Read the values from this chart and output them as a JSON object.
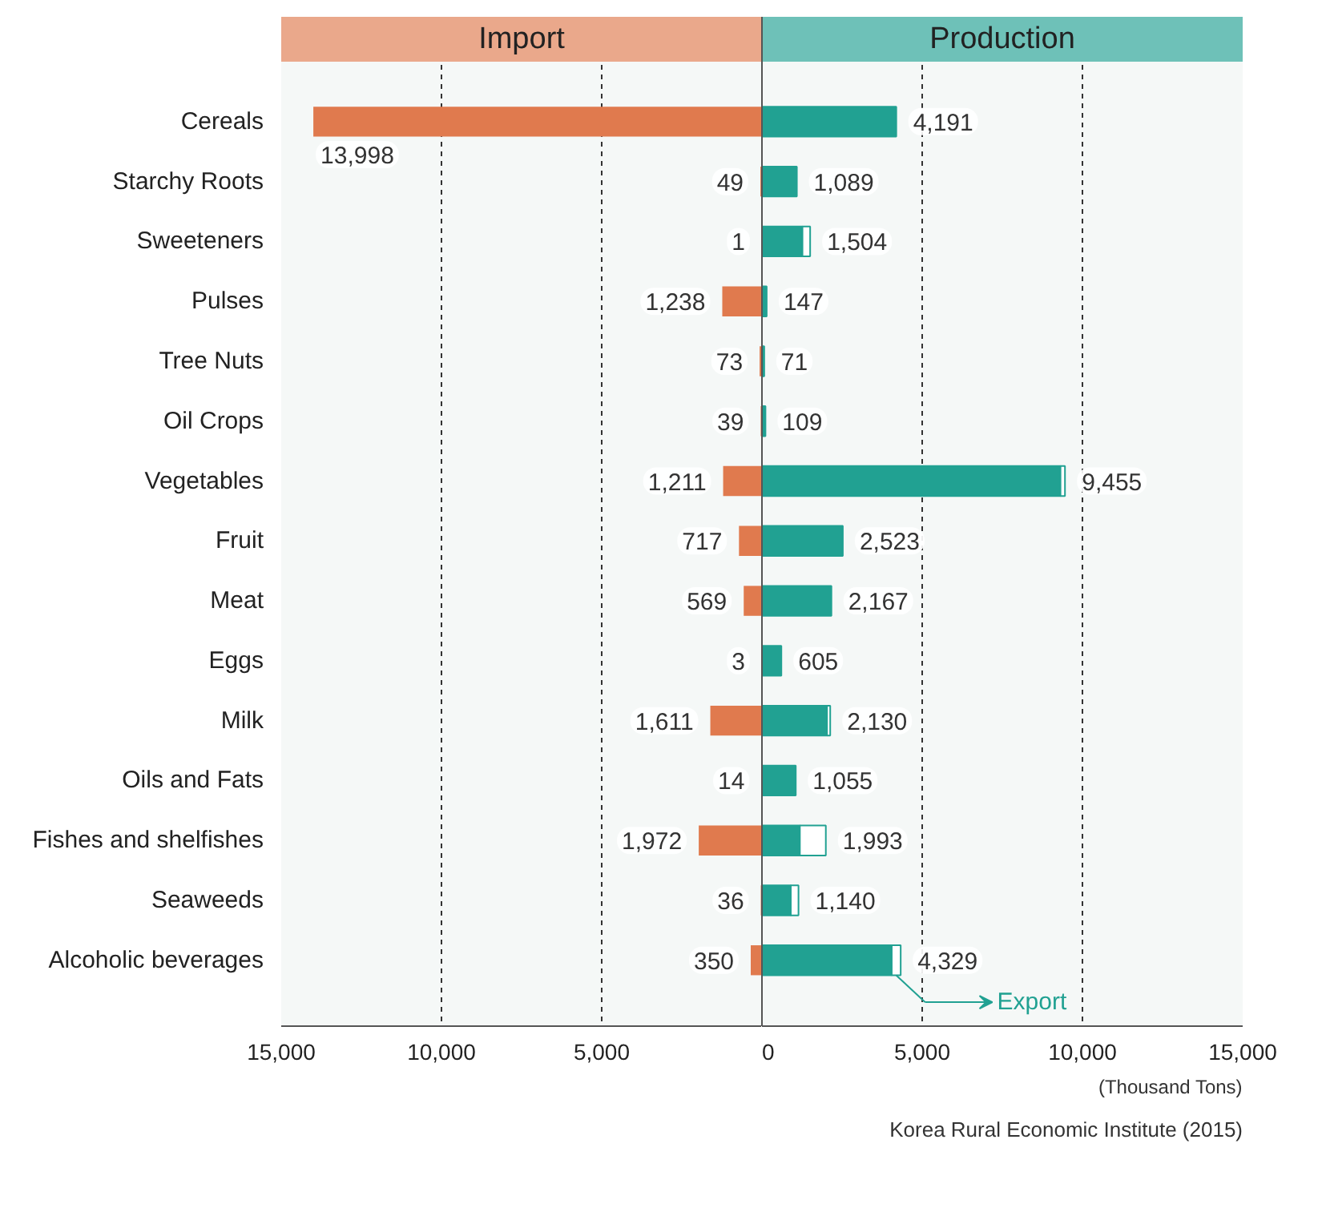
{
  "chart_data": [
    {
      "type": "bar",
      "orientation": "horizontal",
      "title": "Import",
      "categories": [
        "Cereals",
        "Starchy Roots",
        "Sweeteners",
        "Pulses",
        "Tree Nuts",
        "Oil Crops",
        "Vegetables",
        "Fruit",
        "Meat",
        "Eggs",
        "Milk",
        "Oils and Fats",
        "Fishes and shelfishes",
        "Seaweeds",
        "Alcoholic beverages"
      ],
      "series": [
        {
          "color": "#e07a4e",
          "values": [
            13998,
            49,
            1,
            1238,
            73,
            39,
            1211,
            717,
            569,
            3,
            1611,
            14,
            1972,
            36,
            350
          ],
          "value_labels": [
            "13,998",
            "49",
            "1",
            "1,238",
            "73",
            "39",
            "1,211",
            "717",
            "569",
            "3",
            "1,611",
            "14",
            "1,972",
            "36",
            "350"
          ]
        }
      ],
      "xlim": [
        15000,
        0
      ],
      "xticks": [
        {
          "value": 15000,
          "label": "15,000"
        },
        {
          "value": 10000,
          "label": "10,000"
        },
        {
          "value": 5000,
          "label": "5,000"
        }
      ],
      "grid": "x"
    },
    {
      "type": "bar",
      "orientation": "horizontal",
      "stacked": true,
      "title": "Production",
      "series": [
        {
          "color": "#21a192",
          "values": [
            4191,
            1089,
            1264,
            147,
            71,
            109,
            9315,
            2523,
            2167,
            605,
            2030,
            1055,
            1183,
            900,
            4049
          ]
        },
        {
          "name": "Export",
          "color": "#ffffff",
          "values": [
            null,
            null,
            240,
            null,
            null,
            null,
            140,
            null,
            null,
            null,
            100,
            null,
            810,
            240,
            280
          ]
        }
      ],
      "totals": [
        "4,191",
        "1,089",
        "1,504",
        "147",
        "71",
        "109",
        "9,455",
        "2,523",
        "2,167",
        "605",
        "2,130",
        "1,055",
        "1,993",
        "1,140",
        "4,329"
      ],
      "xlim": [
        0,
        15000
      ],
      "xticks": [
        0,
        {
          "value": 5000,
          "label": "5,000"
        },
        {
          "value": 10000,
          "label": "10,000"
        },
        {
          "value": 15000,
          "label": "15,000"
        }
      ],
      "xlabel": "(Thousand Tons)",
      "grid": "x",
      "tick_labels": "x",
      "legend": "bottom right",
      "annotations": [
        "Korea Rural Economic Institute (2015)"
      ]
    }
  ]
}
